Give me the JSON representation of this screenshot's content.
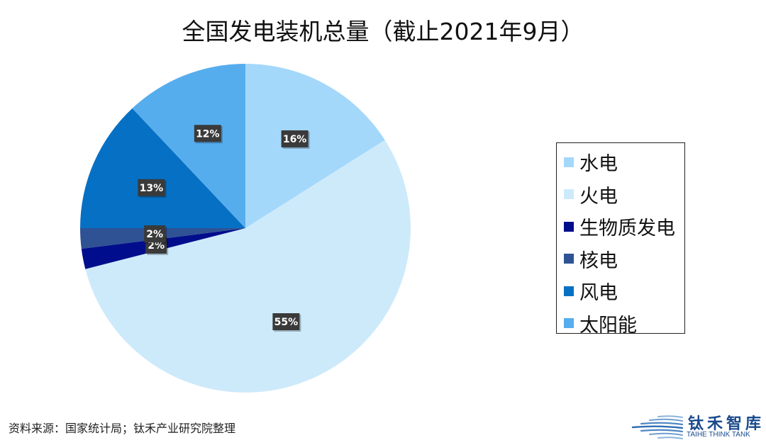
{
  "chart_data": {
    "type": "pie",
    "title": "全国发电装机总量（截止2021年9月）",
    "categories": [
      "水电",
      "火电",
      "生物质发电",
      "核电",
      "风电",
      "太阳能"
    ],
    "values": [
      16,
      55,
      2,
      2,
      13,
      12
    ],
    "labels": [
      "16%",
      "55%",
      "2%",
      "2%",
      "13%",
      "12%"
    ],
    "colors": [
      "#a4d8fb",
      "#cdeafb",
      "#000d8c",
      "#2e5294",
      "#0670c4",
      "#56aded"
    ],
    "legend_position": "right"
  },
  "source": "资料来源：国家统计局；钛禾产业研究院整理",
  "logo": {
    "name_cn": "钛禾智库",
    "name_en": "TAIHE THINK TANK",
    "color": "#1a4a8c"
  }
}
